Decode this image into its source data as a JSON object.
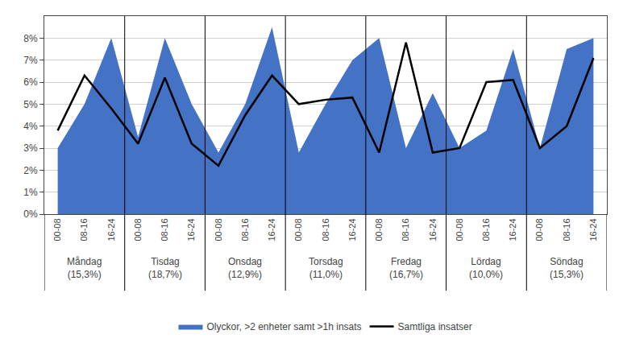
{
  "chart_data": {
    "type": "line",
    "categories": [
      "00-08",
      "08-16",
      "16-24",
      "00-08",
      "08-16",
      "16-24",
      "00-08",
      "08-16",
      "16-24",
      "00-08",
      "08-16",
      "16-24",
      "00-08",
      "08-16",
      "16-24",
      "00-08",
      "08-16",
      "16-24",
      "00-08",
      "08-16",
      "16-24"
    ],
    "series": [
      {
        "name": "Olyckor, >2 enheter samt >1h insats",
        "type": "area",
        "color": "#4472C4",
        "values": [
          0.03,
          0.05,
          0.08,
          0.035,
          0.08,
          0.05,
          0.028,
          0.05,
          0.085,
          0.028,
          0.05,
          0.07,
          0.08,
          0.03,
          0.055,
          0.03,
          0.038,
          0.075,
          0.03,
          0.075,
          0.08
        ]
      },
      {
        "name": "Samtliga insatser",
        "type": "line",
        "color": "#000000",
        "values": [
          0.038,
          0.063,
          0.048,
          0.032,
          0.062,
          0.032,
          0.022,
          0.045,
          0.063,
          0.05,
          0.052,
          0.053,
          0.028,
          0.078,
          0.028,
          0.03,
          0.06,
          0.061,
          0.03,
          0.04,
          0.071
        ]
      }
    ],
    "ylim": [
      0,
      0.09
    ],
    "yticks": [
      {
        "value": 0,
        "label": "0%"
      },
      {
        "value": 0.01,
        "label": "1%"
      },
      {
        "value": 0.02,
        "label": "2%"
      },
      {
        "value": 0.03,
        "label": "3%"
      },
      {
        "value": 0.04,
        "label": "4%"
      },
      {
        "value": 0.05,
        "label": "5%"
      },
      {
        "value": 0.06,
        "label": "6%"
      },
      {
        "value": 0.07,
        "label": "7%"
      },
      {
        "value": 0.08,
        "label": "8%"
      }
    ],
    "grid": true,
    "legend": "bottom",
    "annotations": [
      "Måndag\n(15,3%)",
      "Tisdag\n(18,7%)",
      "Onsdag\n(12,9%)",
      "Torsdag\n(11,0%)",
      "Fredag\n(16,7%)",
      "Lördag\n(10,0%)",
      "Söndag\n(15,3%)"
    ]
  }
}
